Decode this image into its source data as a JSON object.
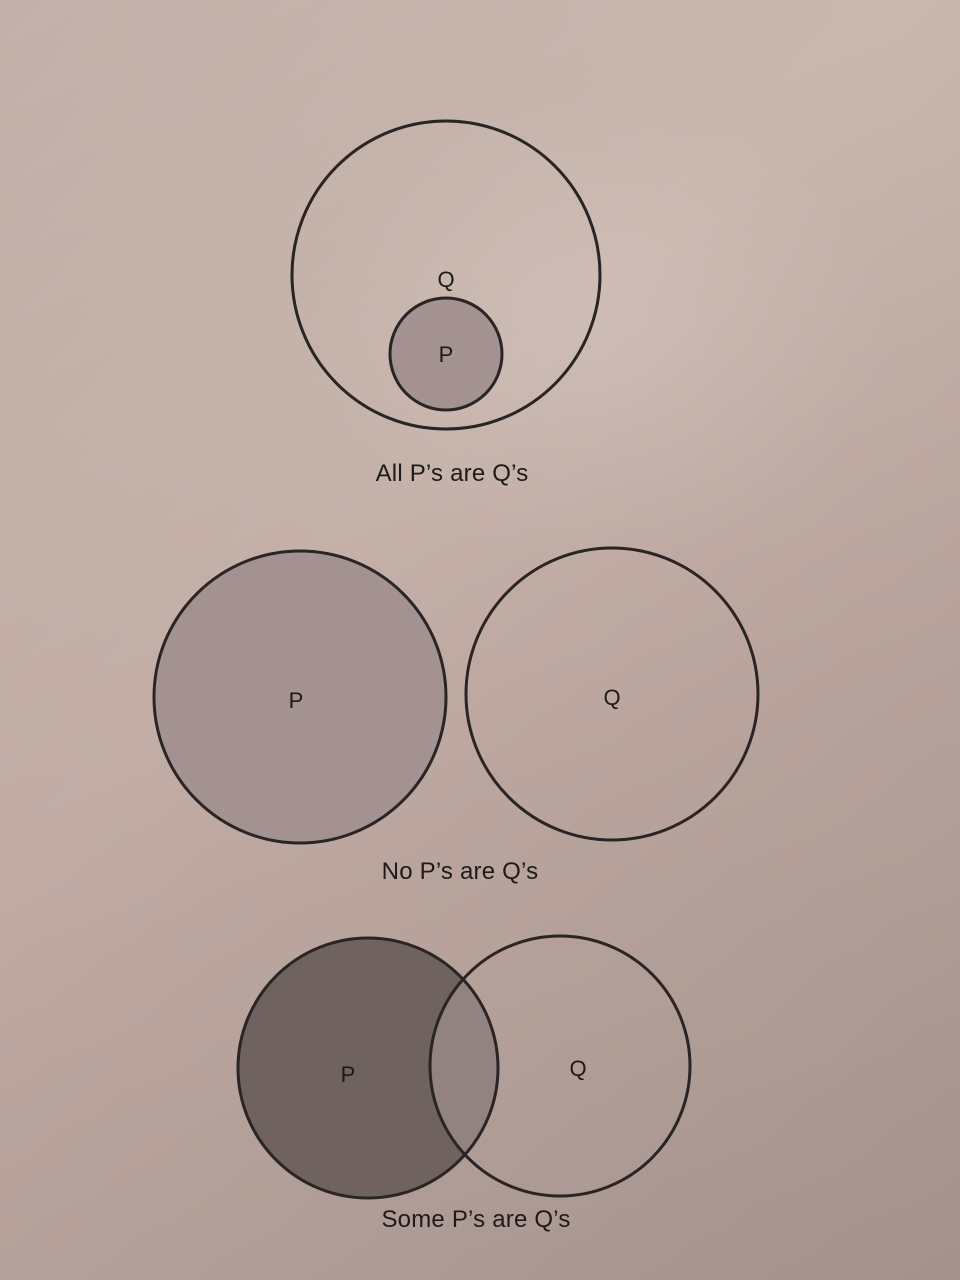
{
  "diagrams": [
    {
      "id": "all",
      "caption": "All P’s are Q’s",
      "labels": {
        "p": "P",
        "q": "Q"
      }
    },
    {
      "id": "no",
      "caption": "No P’s are Q’s",
      "labels": {
        "p": "P",
        "q": "Q"
      }
    },
    {
      "id": "some",
      "caption": "Some P’s are Q’s",
      "labels": {
        "p": "P",
        "q": "Q"
      }
    }
  ],
  "colors": {
    "outline": "#2a2424",
    "p_fill_light": "#a3928f",
    "p_fill_dark": "#6f625f",
    "overlap_fill": "#928380",
    "q_fill": "none"
  }
}
